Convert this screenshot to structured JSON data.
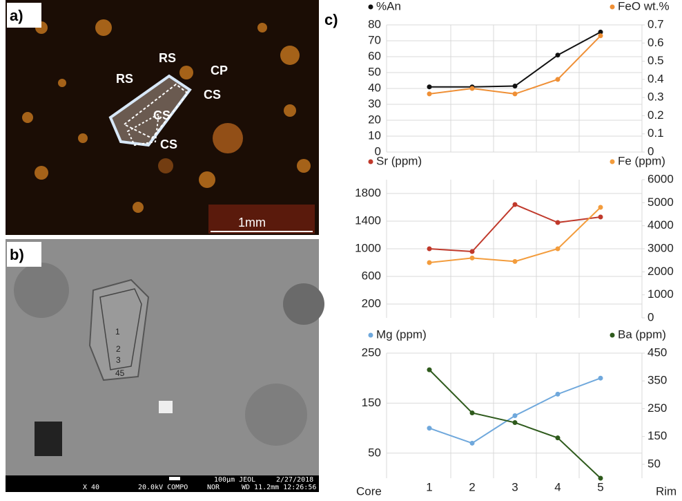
{
  "panels": {
    "a": {
      "label": "a)",
      "annotations": [
        "RS",
        "RS",
        "CP",
        "CS",
        "CS",
        "CS"
      ],
      "scale": "1mm"
    },
    "b": {
      "label": "b)",
      "points": [
        "1",
        "2",
        "3",
        "45"
      ],
      "footer": [
        "X 40",
        "20.0kV COMPO",
        "NOR",
        "100µm JEOL",
        "2/27/2018",
        "WD 11.2mm 12:26:56"
      ]
    },
    "c": {
      "label": "c)"
    }
  },
  "chart_data": [
    {
      "type": "line",
      "ylim": [
        0,
        80
      ],
      "yticks": [
        0,
        10,
        20,
        30,
        40,
        50,
        60,
        70,
        80
      ],
      "y2lim": [
        0,
        0.7
      ],
      "y2ticks": [
        0,
        0.1,
        0.2,
        0.3,
        0.4,
        0.5,
        0.6,
        0.7
      ],
      "grid": true,
      "series": [
        {
          "name": "%An",
          "color": "#111111",
          "values": [
            41,
            41,
            41.5,
            61,
            75.5
          ]
        },
        {
          "name": "FeO wt.%",
          "color": "#ef8f35",
          "axis": "y2",
          "values": [
            0.32,
            0.35,
            0.32,
            0.4,
            0.64
          ]
        }
      ]
    },
    {
      "type": "line",
      "ylim": [
        0,
        2000
      ],
      "yticks": [
        200,
        600,
        1000,
        1400,
        1800
      ],
      "y2lim": [
        0,
        6000
      ],
      "y2ticks": [
        0,
        1000,
        2000,
        3000,
        4000,
        5000,
        6000
      ],
      "grid": true,
      "series": [
        {
          "name": "Sr (ppm)",
          "color": "#c0392b",
          "values": [
            1000,
            960,
            1640,
            1380,
            1460
          ]
        },
        {
          "name": "Fe (ppm)",
          "color": "#f39c3c",
          "axis": "y2",
          "values": [
            2400,
            2600,
            2450,
            3000,
            4800
          ]
        }
      ]
    },
    {
      "type": "line",
      "ylim": [
        0,
        250
      ],
      "yticks": [
        50,
        150,
        250
      ],
      "y2lim": [
        0,
        450
      ],
      "y2ticks": [
        50,
        150,
        250,
        350,
        450
      ],
      "grid": true,
      "categories": [
        "1",
        "2",
        "3",
        "4",
        "5"
      ],
      "x_start_label": "Core",
      "x_end_label": "Rim",
      "series": [
        {
          "name": "Mg (ppm)",
          "color": "#6fa8dc",
          "values": [
            100,
            70,
            125,
            168,
            200
          ]
        },
        {
          "name": "Ba (ppm)",
          "color": "#2e5a1c",
          "axis": "y2",
          "values": [
            390,
            235,
            200,
            145,
            0
          ]
        }
      ]
    }
  ]
}
